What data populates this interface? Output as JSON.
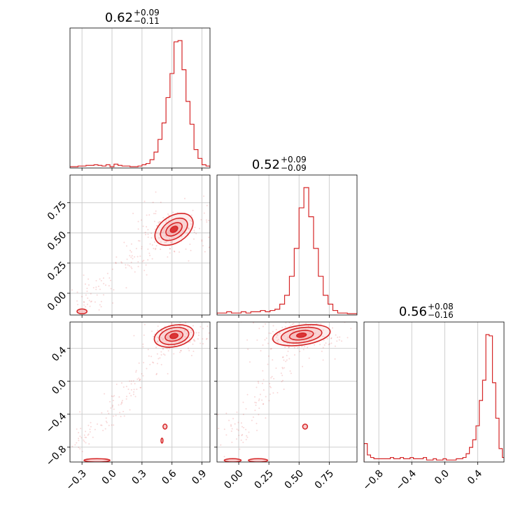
{
  "chart_data": {
    "type": "corner",
    "color": "#d62728",
    "fill_color": "#f4a3a4",
    "grid": true,
    "parameters": [
      {
        "median": "0.62",
        "upper": "+0.09",
        "lower": "−0.11",
        "range": [
          -0.42,
          0.98
        ],
        "ticks": [
          -0.3,
          0.0,
          0.3,
          0.6,
          0.9
        ],
        "tick_labels": [
          "−0.3",
          "0.0",
          "0.3",
          "0.6",
          "0.9"
        ]
      },
      {
        "median": "0.52",
        "upper": "+0.09",
        "lower": "−0.09",
        "range": [
          -0.18,
          0.98
        ],
        "ticks": [
          0.0,
          0.25,
          0.5,
          0.75
        ],
        "tick_labels": [
          "0.00",
          "0.25",
          "0.50",
          "0.75"
        ]
      },
      {
        "median": "0.56",
        "upper": "+0.08",
        "lower": "−0.16",
        "range": [
          -0.98,
          0.72
        ],
        "ticks": [
          -0.8,
          -0.4,
          0.0,
          0.4
        ],
        "tick_labels": [
          "−0.8",
          "−0.4",
          "0.0",
          "0.4"
        ]
      }
    ],
    "marginals": [
      {
        "x": [
          -0.42,
          -0.38,
          -0.34,
          -0.3,
          -0.26,
          -0.22,
          -0.18,
          -0.14,
          -0.1,
          -0.06,
          -0.02,
          0.02,
          0.06,
          0.1,
          0.14,
          0.18,
          0.22,
          0.26,
          0.3,
          0.34,
          0.38,
          0.42,
          0.46,
          0.5,
          0.54,
          0.58,
          0.62,
          0.66,
          0.7,
          0.74,
          0.78,
          0.82,
          0.86,
          0.9,
          0.94
        ],
        "y": [
          0.005,
          0.005,
          0.01,
          0.01,
          0.015,
          0.015,
          0.02,
          0.015,
          0.01,
          0.02,
          0.005,
          0.025,
          0.015,
          0.01,
          0.01,
          0.005,
          0.005,
          0.01,
          0.02,
          0.03,
          0.06,
          0.12,
          0.22,
          0.35,
          0.55,
          0.74,
          0.99,
          1.0,
          0.77,
          0.52,
          0.34,
          0.14,
          0.07,
          0.02,
          0.01
        ]
      },
      {
        "x": [
          -0.18,
          -0.14,
          -0.1,
          -0.06,
          -0.02,
          0.02,
          0.06,
          0.1,
          0.14,
          0.18,
          0.22,
          0.26,
          0.3,
          0.34,
          0.38,
          0.42,
          0.46,
          0.5,
          0.54,
          0.58,
          0.62,
          0.66,
          0.7,
          0.74,
          0.78,
          0.82,
          0.86,
          0.9,
          0.94
        ],
        "y": [
          0.01,
          0.01,
          0.02,
          0.01,
          0.01,
          0.02,
          0.01,
          0.02,
          0.02,
          0.03,
          0.02,
          0.03,
          0.04,
          0.08,
          0.15,
          0.3,
          0.52,
          0.84,
          1.0,
          0.77,
          0.52,
          0.3,
          0.15,
          0.08,
          0.03,
          0.01,
          0.01,
          0.005,
          0.005
        ],
        "bin_width": 0.03
      },
      {
        "x": [
          -0.98,
          -0.94,
          -0.9,
          -0.86,
          -0.82,
          -0.78,
          -0.74,
          -0.7,
          -0.66,
          -0.62,
          -0.58,
          -0.54,
          -0.5,
          -0.46,
          -0.42,
          -0.38,
          -0.34,
          -0.3,
          -0.26,
          -0.22,
          -0.18,
          -0.14,
          -0.1,
          -0.06,
          -0.02,
          0.02,
          0.06,
          0.1,
          0.14,
          0.18,
          0.22,
          0.26,
          0.3,
          0.34,
          0.38,
          0.42,
          0.46,
          0.5,
          0.54,
          0.58,
          0.62,
          0.66,
          0.7
        ],
        "y": [
          0.14,
          0.05,
          0.03,
          0.02,
          0.02,
          0.02,
          0.02,
          0.02,
          0.03,
          0.02,
          0.02,
          0.03,
          0.02,
          0.02,
          0.03,
          0.02,
          0.02,
          0.02,
          0.03,
          0.01,
          0.01,
          0.02,
          0.01,
          0.01,
          0.02,
          0.01,
          0.01,
          0.01,
          0.02,
          0.02,
          0.03,
          0.06,
          0.11,
          0.17,
          0.28,
          0.48,
          0.64,
          1.0,
          0.99,
          0.62,
          0.34,
          0.1,
          0.03
        ]
      }
    ],
    "pairs": [
      {
        "row": 1,
        "col": 0,
        "cx": 0.62,
        "cy": 0.53,
        "angle": -33,
        "levels": [
          [
            0.21,
            0.11
          ],
          [
            0.15,
            0.075
          ],
          [
            0.09,
            0.045
          ],
          [
            0.04,
            0.022
          ]
        ],
        "islands": [
          [
            -0.3,
            -0.15,
            0.05,
            0.02
          ]
        ]
      },
      {
        "row": 2,
        "col": 0,
        "cx": 0.62,
        "cy": 0.55,
        "angle": -12,
        "levels": [
          [
            0.2,
            0.13
          ],
          [
            0.15,
            0.1
          ],
          [
            0.09,
            0.06
          ],
          [
            0.04,
            0.03
          ]
        ],
        "islands": [
          [
            -0.15,
            -0.96,
            0.13,
            0.02
          ],
          [
            0.53,
            -0.55,
            0.02,
            0.03
          ],
          [
            0.5,
            -0.72,
            0.01,
            0.03
          ]
        ]
      },
      {
        "row": 2,
        "col": 1,
        "cx": 0.52,
        "cy": 0.56,
        "angle": -8,
        "levels": [
          [
            0.24,
            0.12
          ],
          [
            0.17,
            0.09
          ],
          [
            0.1,
            0.055
          ],
          [
            0.04,
            0.025
          ]
        ],
        "islands": [
          [
            -0.05,
            -0.96,
            0.07,
            0.02
          ],
          [
            0.16,
            -0.96,
            0.08,
            0.02
          ],
          [
            0.55,
            -0.55,
            0.02,
            0.03
          ]
        ]
      }
    ]
  }
}
